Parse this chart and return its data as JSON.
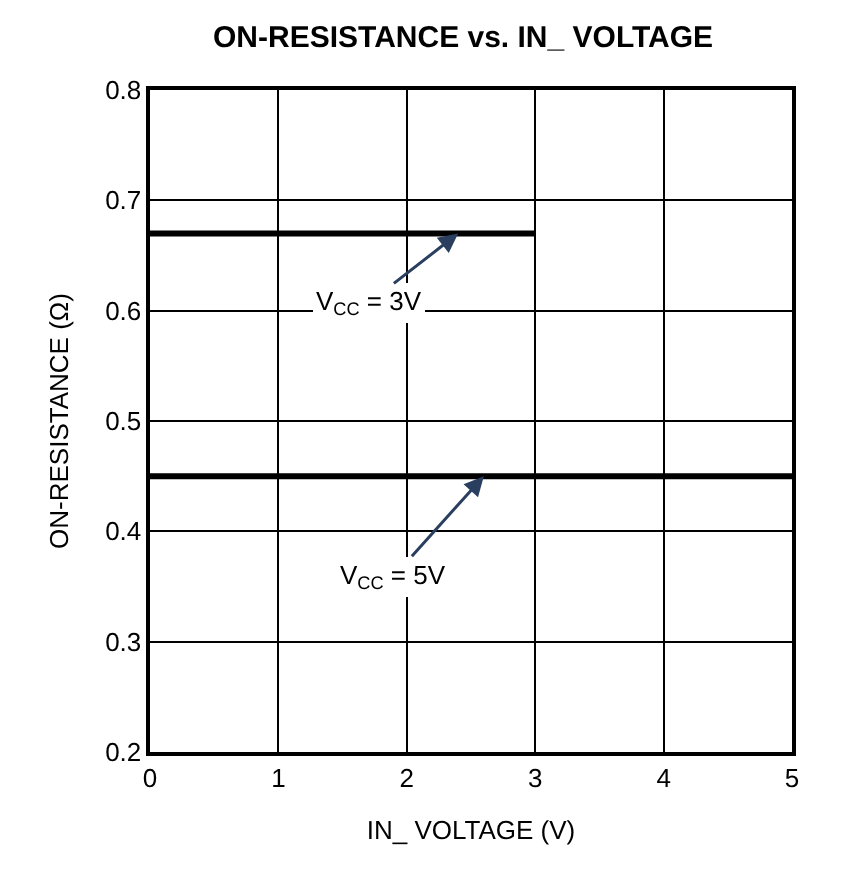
{
  "chart_data": {
    "type": "line",
    "title": "ON-RESISTANCE vs. IN_ VOLTAGE",
    "xlabel": "IN_ VOLTAGE (V)",
    "ylabel": "ON-RESISTANCE (Ω)",
    "series": [
      {
        "color": "#000000",
        "x": [
          0,
          3
        ],
        "values": [
          0.67,
          0.67
        ]
      },
      {
        "color": "#000000",
        "x": [
          0,
          5
        ],
        "values": [
          0.45,
          0.45
        ]
      }
    ],
    "annotations": [
      {
        "text": "V$_{CC}$ = 3V",
        "x": 2.4,
        "y": 0.67
      },
      {
        "text": "V$_{CC}$ = 5V",
        "x": 2.6,
        "y": 0.45
      }
    ],
    "xlim": [
      0,
      5
    ],
    "xticks": [
      0,
      1,
      2,
      3,
      4,
      5
    ],
    "ylim": [
      0.2,
      0.8
    ],
    "yticks": [
      0.2,
      0.3,
      0.4,
      0.5,
      0.6,
      0.7,
      0.8
    ],
    "grid": true,
    "legend": false,
    "marker": "none",
    "line_style": "solid"
  }
}
